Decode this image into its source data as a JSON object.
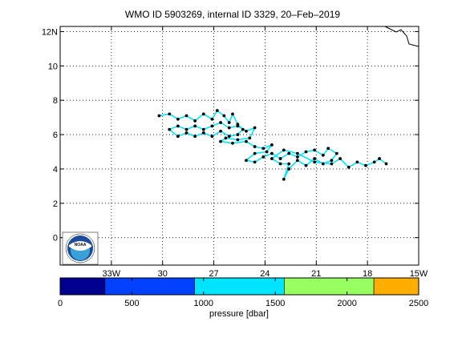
{
  "chart_data": {
    "type": "scatter",
    "title": "WMO ID 5903269, internal ID 3329, 20–Feb–2019",
    "x_ticks": [
      {
        "value": -33,
        "label": "33W"
      },
      {
        "value": -30,
        "label": "30"
      },
      {
        "value": -27,
        "label": "27"
      },
      {
        "value": -24,
        "label": "24"
      },
      {
        "value": -21,
        "label": "21"
      },
      {
        "value": -18,
        "label": "18"
      },
      {
        "value": -15,
        "label": "15W"
      }
    ],
    "y_ticks": [
      {
        "value": 0,
        "label": "0"
      },
      {
        "value": 2,
        "label": "2"
      },
      {
        "value": 4,
        "label": "4"
      },
      {
        "value": 6,
        "label": "6"
      },
      {
        "value": 8,
        "label": "8"
      },
      {
        "value": 10,
        "label": "10"
      },
      {
        "value": 12,
        "label": "12N"
      }
    ],
    "xlim": [
      -36,
      -15
    ],
    "ylim": [
      -1.6,
      12.3
    ],
    "grid": true,
    "track": {
      "line_color": "#00e5ff",
      "marker_color": "#000000",
      "points": [
        [
          -30.2,
          7.1
        ],
        [
          -29.6,
          7.2
        ],
        [
          -29.1,
          6.9
        ],
        [
          -28.6,
          7.1
        ],
        [
          -28.1,
          6.8
        ],
        [
          -27.6,
          7.2
        ],
        [
          -27.1,
          6.9
        ],
        [
          -26.8,
          7.4
        ],
        [
          -26.4,
          7.1
        ],
        [
          -26.1,
          6.7
        ],
        [
          -25.9,
          7.2
        ],
        [
          -25.6,
          6.6
        ],
        [
          -25.3,
          6.3
        ],
        [
          -25.6,
          6.0
        ],
        [
          -26.1,
          5.9
        ],
        [
          -26.6,
          6.2
        ],
        [
          -27.1,
          5.9
        ],
        [
          -27.6,
          6.1
        ],
        [
          -28.1,
          5.9
        ],
        [
          -28.6,
          6.1
        ],
        [
          -29.1,
          5.9
        ],
        [
          -29.6,
          6.3
        ],
        [
          -29.1,
          6.5
        ],
        [
          -28.6,
          6.3
        ],
        [
          -28.1,
          6.5
        ],
        [
          -27.6,
          6.3
        ],
        [
          -27.1,
          6.5
        ],
        [
          -26.6,
          6.7
        ],
        [
          -26.1,
          6.4
        ],
        [
          -25.6,
          6.5
        ],
        [
          -25.1,
          6.2
        ],
        [
          -24.6,
          6.4
        ],
        [
          -24.9,
          5.8
        ],
        [
          -25.6,
          5.7
        ],
        [
          -26.3,
          5.8
        ],
        [
          -26.6,
          5.6
        ],
        [
          -25.9,
          5.5
        ],
        [
          -25.1,
          5.6
        ],
        [
          -24.6,
          5.3
        ],
        [
          -24.1,
          5.2
        ],
        [
          -23.6,
          5.4
        ],
        [
          -23.9,
          5.0
        ],
        [
          -24.6,
          4.9
        ],
        [
          -25.1,
          4.5
        ],
        [
          -24.6,
          4.4
        ],
        [
          -24.1,
          4.7
        ],
        [
          -23.6,
          4.9
        ],
        [
          -23.1,
          4.6
        ],
        [
          -22.6,
          4.9
        ],
        [
          -22.1,
          4.7
        ],
        [
          -21.6,
          5.0
        ],
        [
          -21.1,
          5.1
        ],
        [
          -20.6,
          4.8
        ],
        [
          -20.3,
          5.2
        ],
        [
          -19.8,
          4.9
        ],
        [
          -20.1,
          4.5
        ],
        [
          -20.6,
          4.3
        ],
        [
          -21.1,
          4.6
        ],
        [
          -21.6,
          4.2
        ],
        [
          -22.1,
          4.5
        ],
        [
          -22.6,
          4.0
        ],
        [
          -22.9,
          3.4
        ],
        [
          -22.6,
          4.3
        ],
        [
          -23.1,
          4.3
        ],
        [
          -23.6,
          4.6
        ],
        [
          -22.9,
          5.1
        ],
        [
          -22.1,
          4.9
        ],
        [
          -21.1,
          4.4
        ],
        [
          -20.1,
          4.3
        ],
        [
          -19.6,
          4.6
        ],
        [
          -19.1,
          4.1
        ],
        [
          -18.6,
          4.4
        ],
        [
          -18.1,
          4.2
        ],
        [
          -17.6,
          4.4
        ],
        [
          -17.3,
          4.6
        ],
        [
          -16.9,
          4.3
        ]
      ]
    },
    "colorbar": {
      "label": "pressure [dbar]",
      "range": [
        0,
        2500
      ],
      "ticks": [
        {
          "value": 0,
          "label": "0"
        },
        {
          "value": 500,
          "label": "500"
        },
        {
          "value": 1000,
          "label": "1000"
        },
        {
          "value": 1500,
          "label": "1500"
        },
        {
          "value": 2000,
          "label": "2000"
        },
        {
          "value": 2500,
          "label": "2500"
        }
      ],
      "segments": [
        {
          "from": 0,
          "to": 312.5,
          "color": "#00008f"
        },
        {
          "from": 312.5,
          "to": 937.5,
          "color": "#0040ff"
        },
        {
          "from": 937.5,
          "to": 1562.5,
          "color": "#00e5ff"
        },
        {
          "from": 1562.5,
          "to": 2187.5,
          "color": "#98ff60"
        },
        {
          "from": 2187.5,
          "to": 2500,
          "color": "#ffae00"
        }
      ]
    }
  },
  "logo": {
    "text": "NOAA",
    "outer_color": "#ffffff",
    "ring_color": "#1a4a9c",
    "inner_color": "#3aa0d8"
  },
  "coastline_color": "#000000"
}
